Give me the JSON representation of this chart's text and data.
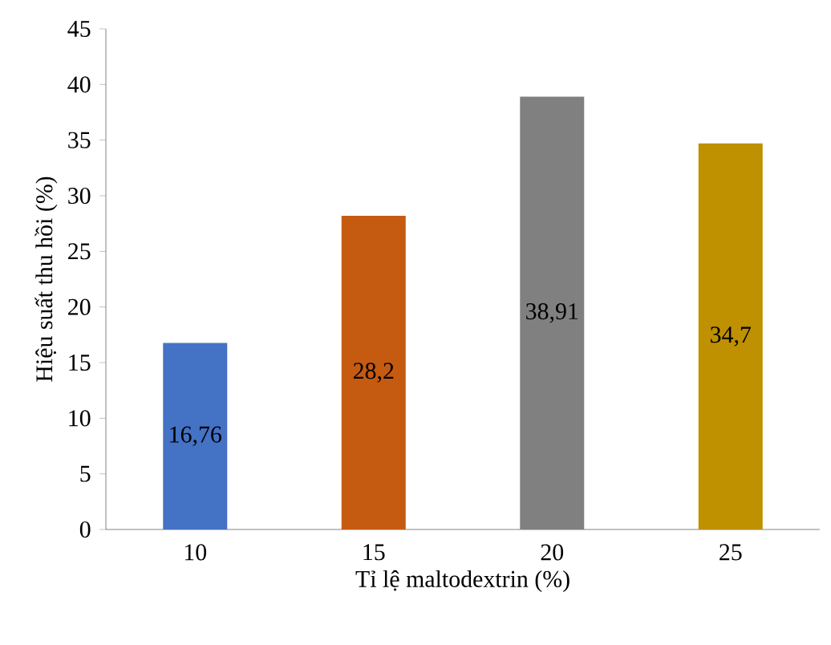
{
  "chart_data": {
    "type": "bar",
    "xlabel": "Tỉ lệ maltodextrin (%)",
    "ylabel": "Hiệu suất thu hồi (%)",
    "categories": [
      "10",
      "15",
      "20",
      "25"
    ],
    "values": [
      16.76,
      28.2,
      38.91,
      34.7
    ],
    "colors": [
      "#4472c4",
      "#c55a11",
      "#808080",
      "#bf9000"
    ],
    "value_labels": [
      "16,76",
      "28,2",
      "38,91",
      "34,7"
    ],
    "ylim": [
      0,
      45
    ],
    "yticks": [
      0,
      5,
      10,
      15,
      20,
      25,
      30,
      35,
      40,
      45
    ],
    "grid": false
  }
}
